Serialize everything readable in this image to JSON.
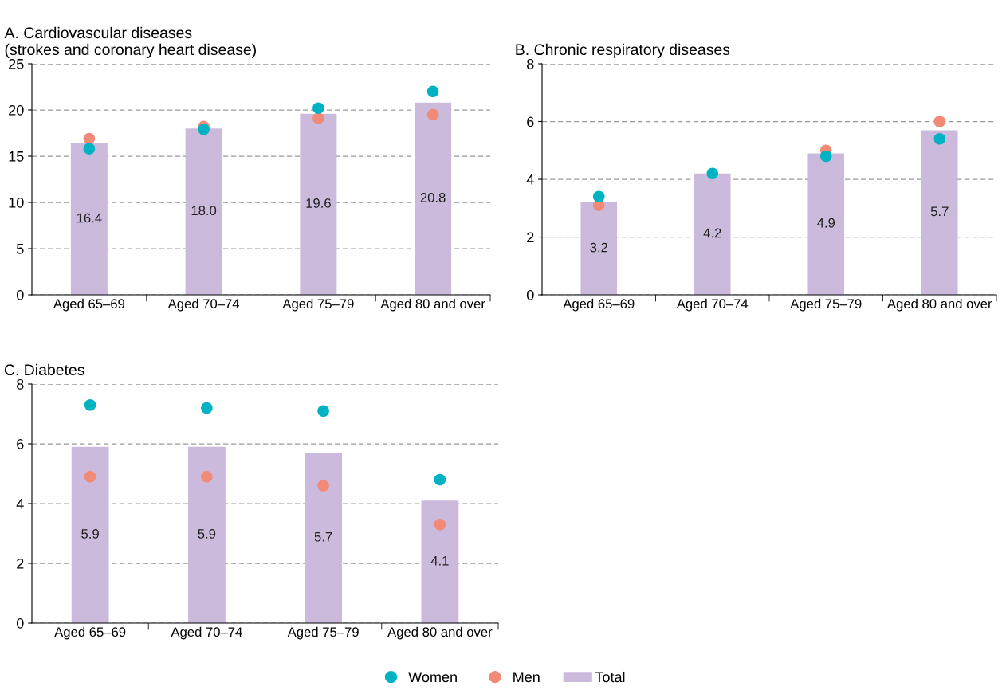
{
  "chart_data": [
    {
      "type": "bar",
      "title": "A. Cardiovascular diseases\n(strokes and coronary heart disease)",
      "categories": [
        "Aged 65–69",
        "Aged 70–74",
        "Aged 75–79",
        "Aged 80 and over"
      ],
      "ylim": [
        0,
        25
      ],
      "yticks": [
        0,
        5,
        10,
        15,
        20,
        25
      ],
      "grid": "y",
      "legend": "bottom",
      "marker": "circle",
      "series": [
        {
          "name": "Women",
          "type": "scatter",
          "color": "#00b3c3",
          "values": [
            15.8,
            17.9,
            20.2,
            22.0
          ]
        },
        {
          "name": "Men",
          "type": "scatter",
          "color": "#f28a78",
          "values": [
            16.9,
            18.2,
            19.1,
            19.5
          ]
        },
        {
          "name": "Total",
          "color": "#cbbadc",
          "values": [
            16.4,
            18.0,
            19.6,
            20.8
          ],
          "value_labels": [
            "16.4",
            "18.0",
            "19.6",
            "20.8"
          ]
        }
      ]
    },
    {
      "type": "bar",
      "title": "B. Chronic respiratory diseases",
      "categories": [
        "Aged 65–69",
        "Aged 70–74",
        "Aged 75–79",
        "Aged 80 and over"
      ],
      "ylim": [
        0,
        8
      ],
      "yticks": [
        0,
        2,
        4,
        6,
        8
      ],
      "grid": "y",
      "marker": "circle",
      "series": [
        {
          "name": "Women",
          "type": "scatter",
          "color": "#00b3c3",
          "values": [
            3.4,
            4.2,
            4.8,
            5.4
          ]
        },
        {
          "name": "Men",
          "type": "scatter",
          "color": "#f28a78",
          "values": [
            3.1,
            null,
            5.0,
            6.0
          ]
        },
        {
          "name": "Total",
          "color": "#cbbadc",
          "values": [
            3.2,
            4.2,
            4.9,
            5.7
          ],
          "value_labels": [
            "3.2",
            "4.2",
            "4.9",
            "5.7"
          ]
        }
      ]
    },
    {
      "type": "bar",
      "title": "C. Diabetes",
      "categories": [
        "Aged 65–69",
        "Aged 70–74",
        "Aged 75–79",
        "Aged 80 and over"
      ],
      "ylim": [
        0,
        8
      ],
      "yticks": [
        0,
        2,
        4,
        6,
        8
      ],
      "grid": "y",
      "marker": "circle",
      "series": [
        {
          "name": "Women",
          "type": "scatter",
          "color": "#00b3c3",
          "values": [
            7.3,
            7.2,
            7.1,
            4.8
          ]
        },
        {
          "name": "Men",
          "type": "scatter",
          "color": "#f28a78",
          "values": [
            4.9,
            4.9,
            4.6,
            3.3
          ]
        },
        {
          "name": "Total",
          "color": "#cbbadc",
          "values": [
            5.9,
            5.9,
            5.7,
            4.1
          ],
          "value_labels": [
            "5.9",
            "5.9",
            "5.7",
            "4.1"
          ]
        }
      ]
    }
  ]
}
